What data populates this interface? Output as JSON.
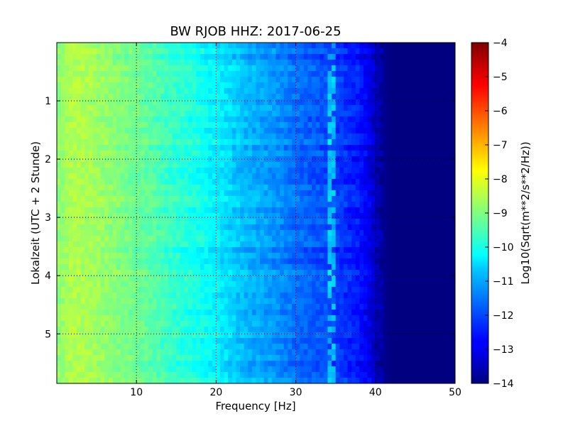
{
  "chart_data": {
    "type": "heatmap",
    "title": "BW RJOB HHZ: 2017-06-25",
    "xlabel": "Frequency [Hz]",
    "ylabel": "Lokalzeit (UTC + 2 Stunde)",
    "xlim": [
      0,
      50
    ],
    "ylim": [
      5.85,
      0
    ],
    "x_ticks": [
      "10",
      "20",
      "30",
      "40",
      "50"
    ],
    "y_ticks": [
      "1",
      "2",
      "3",
      "4",
      "5"
    ],
    "grid": true,
    "colorbar": {
      "label": "Log10(Sqrt(m**2/s**2/Hz))",
      "range": [
        -14,
        -4
      ],
      "ticks": [
        "−4",
        "−5",
        "−6",
        "−7",
        "−8",
        "−9",
        "−10",
        "−11",
        "−12",
        "−13",
        "−14"
      ],
      "colormap": "jet"
    },
    "spectrum_profile": {
      "frequency_hz": [
        0,
        2,
        4,
        6,
        8,
        10,
        12,
        14,
        16,
        18,
        20,
        22,
        24,
        26,
        28,
        30,
        32,
        34,
        36,
        38,
        39,
        40,
        41,
        42,
        50
      ],
      "log10_amplitude": [
        -8.9,
        -8.5,
        -8.6,
        -8.8,
        -9.0,
        -9.2,
        -9.4,
        -9.7,
        -9.9,
        -10.1,
        -10.4,
        -10.7,
        -11.0,
        -11.2,
        -11.4,
        -11.7,
        -11.9,
        -12.0,
        -12.3,
        -12.6,
        -12.9,
        -13.4,
        -13.8,
        -14.0,
        -14.0
      ]
    },
    "features": {
      "spectral_line_hz": 34.5
    }
  }
}
